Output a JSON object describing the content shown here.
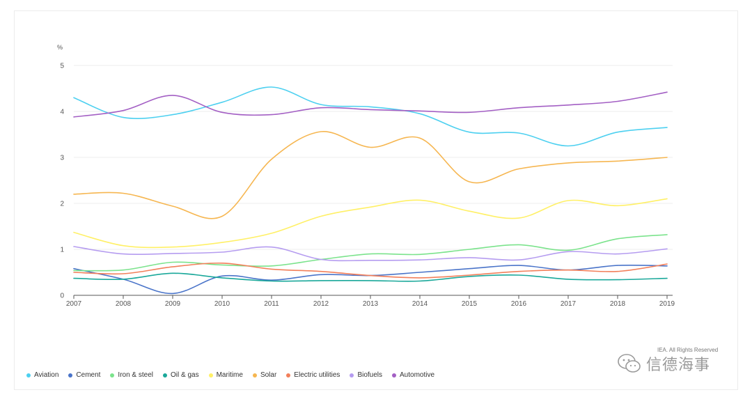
{
  "chart_data": {
    "type": "line",
    "title": "",
    "ylabel": "%",
    "xlabel": "",
    "ylim": [
      0,
      5
    ],
    "y_ticks": [
      0,
      1,
      2,
      3,
      4,
      5
    ],
    "x": [
      "2007",
      "2008",
      "2009",
      "2010",
      "2011",
      "2012",
      "2013",
      "2014",
      "2015",
      "2016",
      "2017",
      "2018",
      "2019"
    ],
    "grid": true,
    "legend_position": "bottom-left",
    "series": [
      {
        "name": "Aviation",
        "color": "#4dd0f0",
        "values": [
          4.3,
          3.87,
          3.93,
          4.2,
          4.53,
          4.15,
          4.1,
          3.95,
          3.55,
          3.53,
          3.25,
          3.55,
          3.65
        ]
      },
      {
        "name": "Cement",
        "color": "#4a74c9",
        "values": [
          0.58,
          0.35,
          0.04,
          0.42,
          0.33,
          0.45,
          0.43,
          0.5,
          0.58,
          0.65,
          0.55,
          0.65,
          0.64
        ]
      },
      {
        "name": "Iron & steel",
        "color": "#7be38c",
        "values": [
          0.54,
          0.55,
          0.72,
          0.66,
          0.64,
          0.78,
          0.9,
          0.89,
          1.0,
          1.1,
          0.98,
          1.23,
          1.32
        ]
      },
      {
        "name": "Oil & gas",
        "color": "#1aa89a",
        "values": [
          0.37,
          0.35,
          0.48,
          0.38,
          0.31,
          0.32,
          0.32,
          0.31,
          0.41,
          0.44,
          0.35,
          0.34,
          0.37
        ]
      },
      {
        "name": "Maritime",
        "color": "#fff066",
        "values": [
          1.37,
          1.08,
          1.05,
          1.15,
          1.35,
          1.72,
          1.92,
          2.07,
          1.83,
          1.68,
          2.06,
          1.95,
          2.1
        ]
      },
      {
        "name": "Solar",
        "color": "#f6b650",
        "values": [
          2.2,
          2.22,
          1.94,
          1.72,
          2.96,
          3.56,
          3.22,
          3.42,
          2.47,
          2.75,
          2.88,
          2.92,
          3.0
        ]
      },
      {
        "name": "Electric utilities",
        "color": "#f27f5a",
        "values": [
          0.5,
          0.47,
          0.62,
          0.7,
          0.57,
          0.52,
          0.43,
          0.38,
          0.44,
          0.52,
          0.55,
          0.52,
          0.68
        ]
      },
      {
        "name": "Biofuels",
        "color": "#b59cf0",
        "values": [
          1.06,
          0.9,
          0.91,
          0.94,
          1.05,
          0.78,
          0.76,
          0.77,
          0.82,
          0.77,
          0.95,
          0.9,
          1.01
        ]
      },
      {
        "name": "Automotive",
        "color": "#a35fc4",
        "values": [
          3.88,
          4.02,
          4.35,
          3.98,
          3.93,
          4.08,
          4.04,
          4.01,
          3.98,
          4.08,
          4.14,
          4.22,
          4.42
        ]
      }
    ]
  },
  "credit": "IEA. All Rights Reserved",
  "watermark": "信德海事"
}
